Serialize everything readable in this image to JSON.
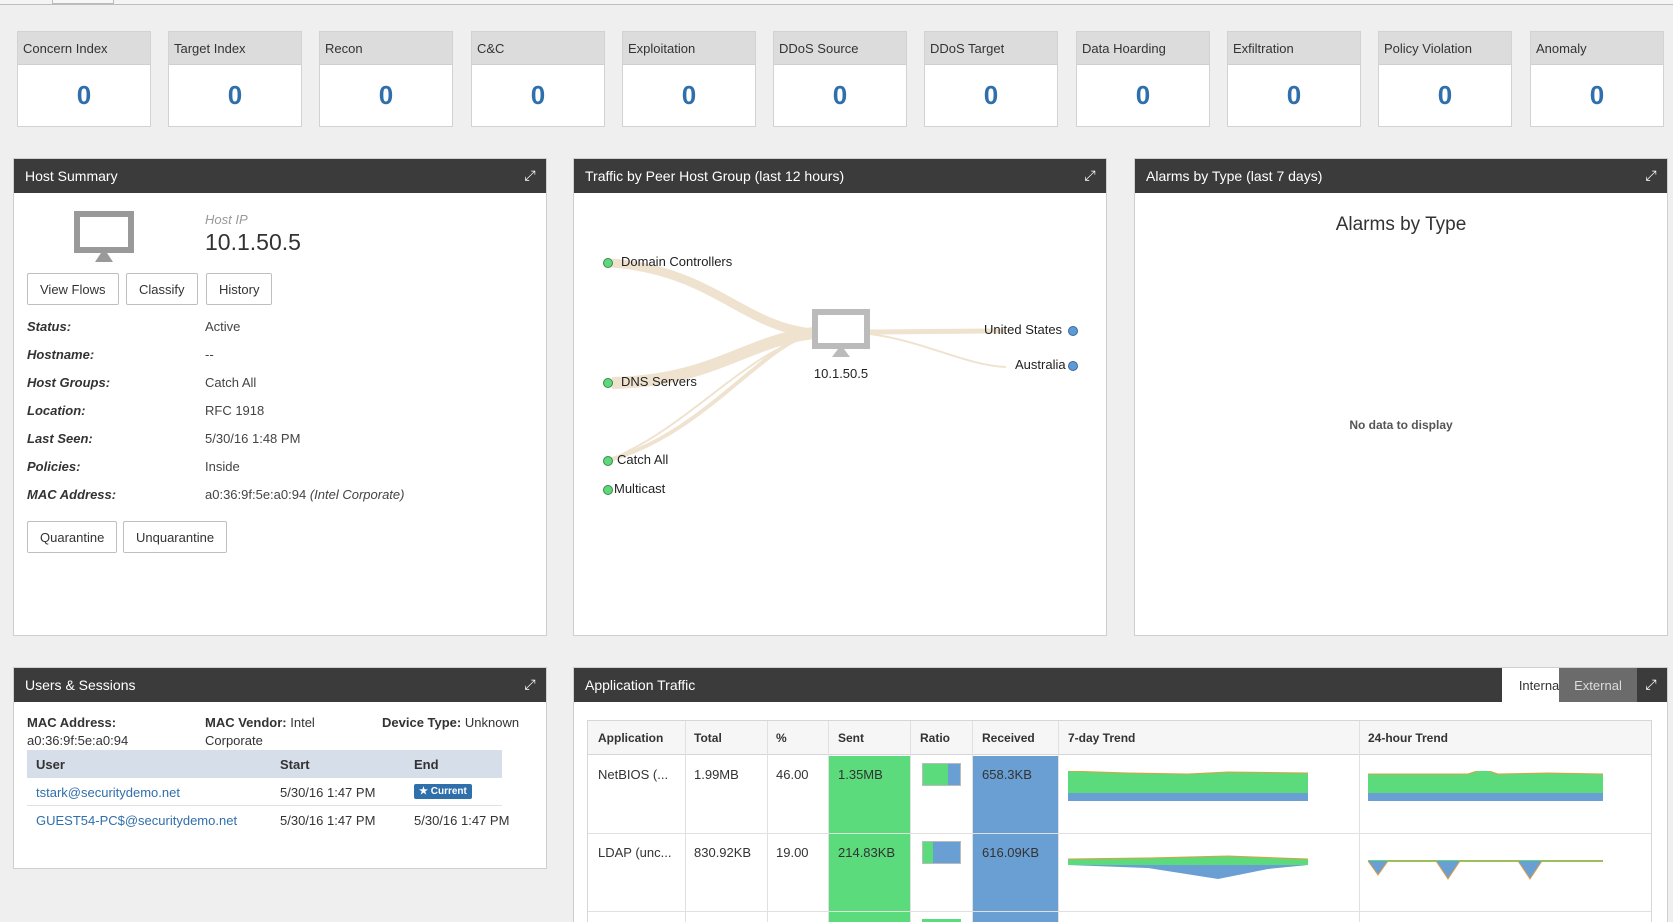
{
  "tiles": [
    {
      "label": "Concern Index",
      "value": "0"
    },
    {
      "label": "Target Index",
      "value": "0"
    },
    {
      "label": "Recon",
      "value": "0"
    },
    {
      "label": "C&C",
      "value": "0"
    },
    {
      "label": "Exploitation",
      "value": "0"
    },
    {
      "label": "DDoS Source",
      "value": "0"
    },
    {
      "label": "DDoS Target",
      "value": "0"
    },
    {
      "label": "Data Hoarding",
      "value": "0"
    },
    {
      "label": "Exfiltration",
      "value": "0"
    },
    {
      "label": "Policy Violation",
      "value": "0"
    },
    {
      "label": "Anomaly",
      "value": "0"
    }
  ],
  "host_summary": {
    "title": "Host Summary",
    "host_ip_label": "Host IP",
    "host_ip": "10.1.50.5",
    "buttons": {
      "view_flows": "View Flows",
      "classify": "Classify",
      "history": "History",
      "quarantine": "Quarantine",
      "unquarantine": "Unquarantine"
    },
    "fields": [
      {
        "key": "Status:",
        "value": "Active"
      },
      {
        "key": "Hostname:",
        "value": "--"
      },
      {
        "key": "Host Groups:",
        "value": "Catch All"
      },
      {
        "key": "Location:",
        "value": "RFC 1918"
      },
      {
        "key": "Last Seen:",
        "value": "5/30/16 1:48 PM"
      },
      {
        "key": "Policies:",
        "value": "Inside"
      },
      {
        "key": "MAC Address:",
        "value": "a0:36:9f:5e:a0:94"
      }
    ],
    "mac_vendor_note": "(Intel Corporate)"
  },
  "traffic": {
    "title": "Traffic by Peer Host Group (last 12 hours)",
    "center_label": "10.1.50.5",
    "left_nodes": [
      "Domain Controllers",
      "DNS Servers",
      "Catch All",
      "Multicast"
    ],
    "right_nodes": [
      "United States",
      "Australia"
    ],
    "colors": {
      "left": "#5fd77a",
      "right": "#5e9ad6",
      "flow": "#efe3d0"
    }
  },
  "alarms": {
    "title": "Alarms by Type (last 7 days)",
    "chart_title": "Alarms by Type",
    "empty": "No data to display"
  },
  "users": {
    "title": "Users & Sessions",
    "mac_label": "MAC Address:",
    "mac_value": "a0:36:9f:5e:a0:94",
    "vendor_label": "MAC Vendor:",
    "vendor_value_1": "Intel",
    "vendor_value_2": "Corporate",
    "device_label": "Device Type:",
    "device_value": "Unknown",
    "columns": [
      "User",
      "Start",
      "End"
    ],
    "rows": [
      {
        "user": "tstark@securitydemo.net",
        "start": "5/30/16 1:47 PM",
        "end": "Current"
      },
      {
        "user": "GUEST54-PC$@securitydemo.net",
        "start": "5/30/16 1:47 PM",
        "end": "5/30/16 1:47 PM"
      }
    ]
  },
  "app_traffic": {
    "title": "Application Traffic",
    "tabs": {
      "internal": "Internal",
      "external": "External"
    },
    "columns": [
      "Application",
      "Total",
      "%",
      "Sent",
      "Ratio",
      "Received",
      "7-day Trend",
      "24-hour Trend"
    ],
    "rows": [
      {
        "app": "NetBIOS (...",
        "total": "1.99MB",
        "pct": "46.00",
        "sent": "1.35MB",
        "received": "658.3KB",
        "sent_ratio": 0.67
      },
      {
        "app": "LDAP (unc...",
        "total": "830.92KB",
        "pct": "19.00",
        "sent": "214.83KB",
        "received": "616.09KB",
        "sent_ratio": 0.26
      }
    ],
    "colors": {
      "sent": "#5bdb7b",
      "received": "#6a9fd4",
      "trend_line": "#e0a040"
    }
  }
}
